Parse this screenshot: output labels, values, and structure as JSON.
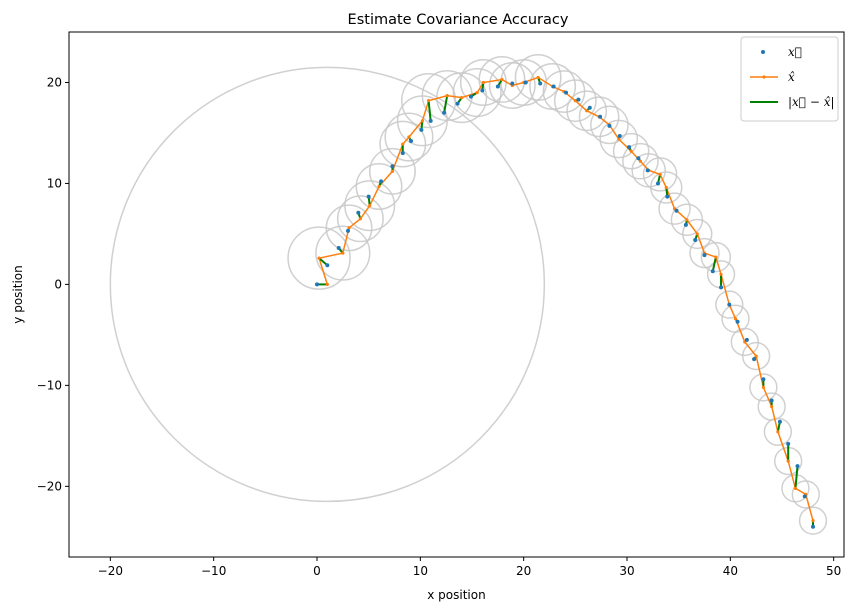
{
  "chart_data": {
    "type": "scatter",
    "title": "Estimate Covariance Accuracy",
    "xlabel": "x position",
    "ylabel": "y position",
    "xlim": [
      -24,
      51
    ],
    "ylim": [
      -27,
      25
    ],
    "xticks": [
      -20,
      -10,
      0,
      10,
      20,
      30,
      40,
      50
    ],
    "yticks": [
      -20,
      -10,
      0,
      10,
      20
    ],
    "grid": false,
    "legend_position": "top-right",
    "colors": {
      "truth": "#1f77b4",
      "estimate": "#ff7f0e",
      "error": "#008000",
      "covariance": "#c8c8c8"
    },
    "legend": [
      "x⃗",
      "x̂",
      "|x⃗ − x̂|"
    ],
    "series": [
      {
        "name": "x⃗",
        "style": "points",
        "x": [
          0.0,
          1.0,
          2.1,
          3.0,
          4.0,
          5.0,
          6.2,
          7.3,
          8.3,
          9.1,
          10.1,
          11.0,
          12.3,
          13.6,
          14.9,
          16.0,
          17.5,
          18.9,
          20.2,
          21.6,
          22.9,
          24.1,
          25.3,
          26.4,
          27.4,
          28.3,
          29.3,
          30.2,
          31.1,
          32.0,
          33.0,
          33.9,
          34.8,
          35.7,
          36.6,
          37.5,
          38.3,
          39.1,
          39.9,
          40.7,
          41.6,
          42.3,
          43.2,
          44.0,
          44.8,
          45.6,
          46.5,
          47.2,
          48.0
        ],
        "y": [
          0.0,
          1.9,
          3.6,
          5.3,
          7.1,
          8.7,
          10.2,
          11.7,
          13.0,
          14.2,
          15.3,
          16.2,
          17.0,
          17.9,
          18.6,
          19.2,
          19.6,
          19.9,
          20.0,
          19.9,
          19.6,
          19.0,
          18.3,
          17.5,
          16.6,
          15.7,
          14.7,
          13.6,
          12.5,
          11.3,
          10.0,
          8.7,
          7.3,
          5.9,
          4.4,
          2.9,
          1.3,
          -0.3,
          -2.0,
          -3.7,
          -5.5,
          -7.4,
          -9.4,
          -11.5,
          -13.6,
          -15.8,
          -18.0,
          -21.0,
          -24.0
        ]
      },
      {
        "name": "x̂",
        "style": "line-markers",
        "x": [
          1.0,
          0.2,
          2.5,
          3.1,
          4.2,
          5.1,
          6.0,
          7.3,
          8.3,
          8.9,
          10.2,
          10.8,
          12.6,
          14.0,
          15.5,
          16.1,
          17.9,
          18.9,
          20.0,
          21.4,
          22.8,
          23.9,
          25.0,
          26.1,
          27.3,
          28.3,
          29.2,
          30.4,
          31.3,
          32.1,
          33.2,
          33.8,
          34.6,
          35.8,
          36.8,
          37.5,
          38.6,
          39.1,
          39.9,
          40.5,
          41.4,
          42.5,
          43.2,
          44.0,
          44.6,
          45.6,
          46.3,
          47.3,
          48.0
        ],
        "y": [
          0.0,
          2.6,
          3.1,
          5.6,
          6.5,
          7.8,
          9.7,
          11.2,
          13.9,
          14.6,
          16.2,
          18.2,
          18.7,
          18.5,
          19.0,
          20.0,
          20.3,
          19.7,
          20.0,
          20.5,
          19.6,
          19.1,
          18.2,
          17.2,
          16.6,
          15.8,
          14.4,
          13.2,
          12.2,
          11.3,
          10.9,
          9.6,
          7.5,
          6.4,
          5.0,
          3.1,
          2.7,
          1.0,
          -2.0,
          -3.4,
          -5.7,
          -7.1,
          -10.2,
          -12.1,
          -14.6,
          -17.5,
          -20.2,
          -20.8,
          -23.4
        ]
      }
    ],
    "error_segments": "|x⃗ − x̂| drawn between each x⃗ point and the matching x̂ point",
    "covariance_circles": {
      "center_series": "x̂",
      "radius": [
        21.0,
        3.0,
        2.6,
        2.2,
        2.2,
        2.4,
        2.2,
        2.2,
        2.2,
        2.3,
        2.4,
        2.6,
        2.4,
        2.4,
        2.3,
        2.2,
        2.2,
        2.2,
        2.2,
        2.2,
        2.2,
        2.0,
        2.0,
        1.9,
        1.9,
        1.8,
        1.8,
        1.7,
        1.7,
        1.6,
        1.6,
        1.5,
        1.5,
        1.5,
        1.4,
        1.4,
        1.4,
        1.3,
        1.3,
        1.3,
        1.3,
        1.3,
        1.3,
        1.3,
        1.3,
        1.3,
        1.3,
        1.3,
        1.3
      ]
    }
  }
}
